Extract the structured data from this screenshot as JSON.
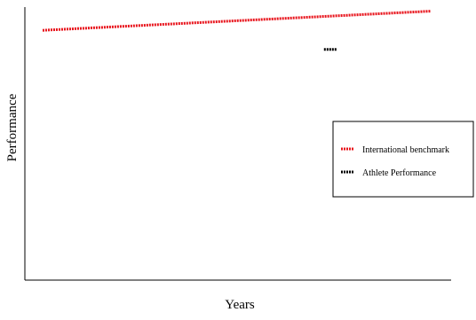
{
  "chart_data": {
    "type": "line",
    "title": "",
    "xlabel": "Years",
    "ylabel": "Performance",
    "grid": false,
    "axes_box": "left-bottom",
    "xlim": [
      0,
      100
    ],
    "ylim": [
      0,
      100
    ],
    "legend": {
      "placement": "right",
      "framed": true
    },
    "series": [
      {
        "name": "International benchmark",
        "color": "#e8141c",
        "line_style": "dotted-thick",
        "x": [
          0,
          100
        ],
        "y": [
          91.5,
          98.5
        ]
      },
      {
        "name": "Athlete Performance",
        "color": "#000000",
        "line_style": "dotted-thick",
        "x": [
          72.5,
          75.7
        ],
        "y": [
          84.5,
          84.5
        ]
      }
    ]
  }
}
